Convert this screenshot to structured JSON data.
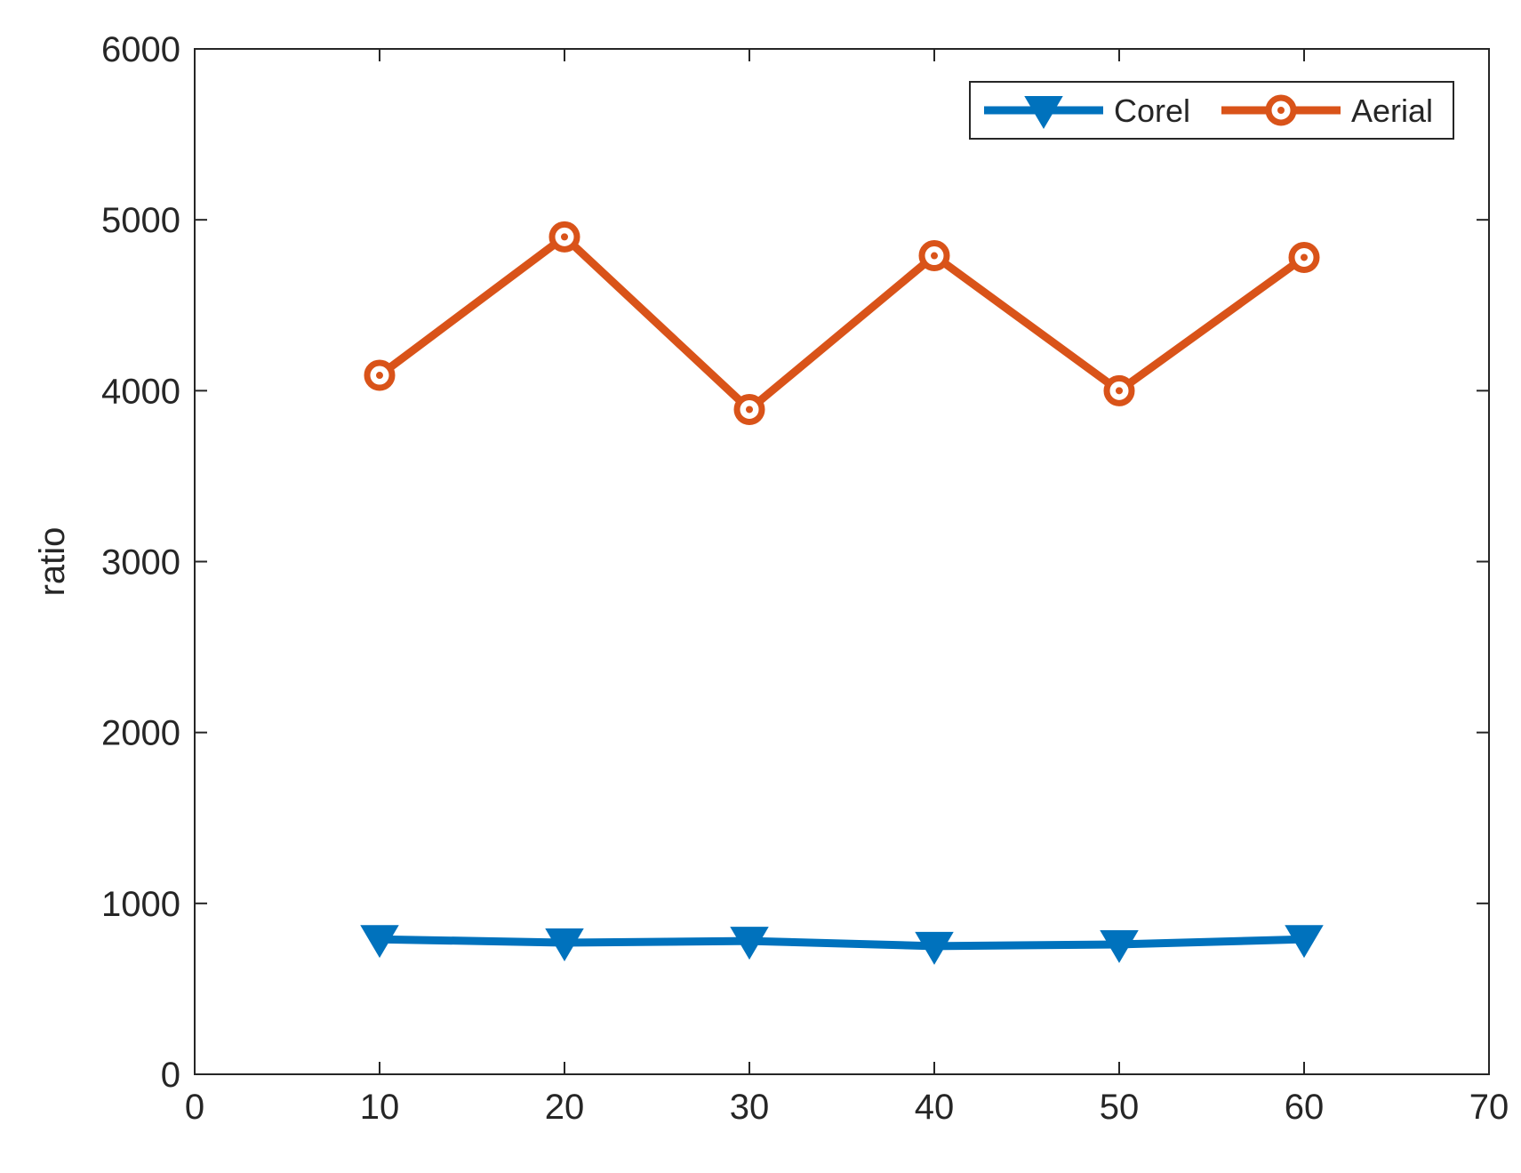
{
  "chart_data": {
    "type": "line",
    "title": "",
    "xlabel": "",
    "ylabel": "ratio",
    "xlim": [
      0,
      70
    ],
    "ylim": [
      0,
      6000
    ],
    "xticks": [
      0,
      10,
      20,
      30,
      40,
      50,
      60,
      70
    ],
    "yticks": [
      0,
      1000,
      2000,
      3000,
      4000,
      5000,
      6000
    ],
    "x": [
      10,
      20,
      30,
      40,
      50,
      60
    ],
    "grid": false,
    "legend_position": "top-right",
    "series": [
      {
        "name": "Corel",
        "values": [
          790,
          770,
          780,
          750,
          760,
          790
        ],
        "color": "#0072BD",
        "marker": "triangle-down"
      },
      {
        "name": "Aerial",
        "values": [
          4090,
          4900,
          3890,
          4790,
          4000,
          4780
        ],
        "color": "#D95319",
        "marker": "circle"
      }
    ]
  }
}
